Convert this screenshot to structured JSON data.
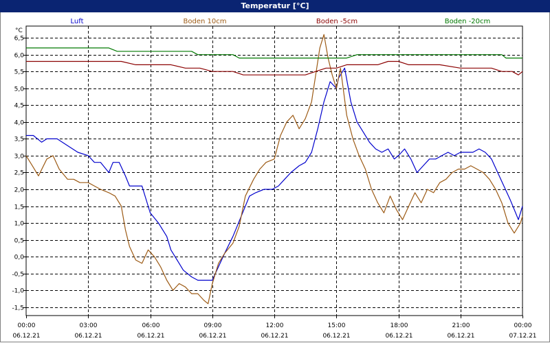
{
  "window": {
    "title": "Temperatur [°C]"
  },
  "chart_data": {
    "type": "line",
    "title": "Temperatur [°C]",
    "ylabel": "°C",
    "xlabel": "",
    "ylim": [
      -1.75,
      6.85
    ],
    "xlim": [
      0,
      24
    ],
    "grid": true,
    "legend_position": "top",
    "y_ticks": [
      -1.5,
      -1.0,
      -0.5,
      0.0,
      0.5,
      1.0,
      1.5,
      2.0,
      2.5,
      3.0,
      3.5,
      4.0,
      4.5,
      5.0,
      5.5,
      6.0,
      6.5
    ],
    "y_tick_labels": [
      "-1,5",
      "-1,0",
      "-0,5",
      "0,0",
      "0,5",
      "1,0",
      "1,5",
      "2,0",
      "2,5",
      "3,0",
      "3,5",
      "4,0",
      "4,5",
      "5,0",
      "5,5",
      "6,0",
      "6,5"
    ],
    "x_ticks": [
      0,
      3,
      6,
      9,
      12,
      15,
      18,
      21,
      24
    ],
    "x_tick_times": [
      "00:00",
      "03:00",
      "06:00",
      "09:00",
      "12:00",
      "15:00",
      "18:00",
      "21:00",
      "00:00"
    ],
    "x_tick_dates": [
      "06.12.21",
      "06.12.21",
      "06.12.21",
      "06.12.21",
      "06.12.21",
      "06.12.21",
      "06.12.21",
      "06.12.21",
      "07.12.21"
    ],
    "series": [
      {
        "name": "Luft",
        "color": "#0000cc",
        "x": [
          0,
          0.35,
          0.75,
          1.0,
          1.5,
          2.0,
          2.5,
          3.0,
          3.3,
          3.6,
          4.0,
          4.2,
          4.5,
          4.8,
          5.0,
          5.3,
          5.6,
          5.9,
          6.0,
          6.4,
          6.8,
          7.0,
          7.3,
          7.6,
          8.0,
          8.3,
          8.6,
          9.0,
          9.3,
          9.6,
          10.0,
          10.4,
          10.8,
          11.1,
          11.5,
          11.9,
          12.2,
          12.5,
          12.8,
          13.2,
          13.5,
          13.8,
          14.1,
          14.4,
          14.7,
          15.0,
          15.1,
          15.4,
          15.7,
          16.0,
          16.3,
          16.6,
          16.9,
          17.2,
          17.5,
          17.8,
          18.0,
          18.3,
          18.6,
          18.9,
          19.2,
          19.5,
          19.8,
          20.1,
          20.4,
          20.7,
          21.0,
          21.3,
          21.6,
          21.9,
          22.2,
          22.5,
          22.8,
          23.1,
          23.4,
          23.6,
          23.8,
          24.0
        ],
        "y": [
          3.6,
          3.6,
          3.4,
          3.5,
          3.5,
          3.3,
          3.1,
          3.0,
          2.8,
          2.8,
          2.5,
          2.8,
          2.8,
          2.4,
          2.1,
          2.1,
          2.1,
          1.5,
          1.3,
          1.0,
          0.6,
          0.2,
          -0.1,
          -0.4,
          -0.6,
          -0.7,
          -0.7,
          -0.7,
          -0.3,
          0.1,
          0.6,
          1.2,
          1.8,
          1.9,
          2.0,
          2.0,
          2.1,
          2.3,
          2.5,
          2.7,
          2.8,
          3.1,
          3.8,
          4.6,
          5.2,
          5.0,
          5.3,
          5.6,
          4.6,
          4.0,
          3.7,
          3.4,
          3.2,
          3.1,
          3.2,
          2.9,
          3.0,
          3.2,
          2.9,
          2.5,
          2.7,
          2.9,
          2.9,
          3.0,
          3.1,
          3.0,
          3.1,
          3.1,
          3.1,
          3.2,
          3.1,
          2.9,
          2.5,
          2.1,
          1.7,
          1.4,
          1.1,
          1.5
        ]
      },
      {
        "name": "Boden 10cm",
        "color": "#9c5a14",
        "x": [
          0,
          0.3,
          0.6,
          1.0,
          1.3,
          1.6,
          2.0,
          2.3,
          2.6,
          3.0,
          3.3,
          3.6,
          4.0,
          4.3,
          4.6,
          4.8,
          5.0,
          5.3,
          5.6,
          5.9,
          6.2,
          6.5,
          6.8,
          7.1,
          7.4,
          7.7,
          8.0,
          8.3,
          8.6,
          8.8,
          9.0,
          9.3,
          9.6,
          10.0,
          10.3,
          10.6,
          11.0,
          11.3,
          11.6,
          12.0,
          12.3,
          12.6,
          12.9,
          13.2,
          13.5,
          13.8,
          14.0,
          14.2,
          14.4,
          14.6,
          14.8,
          15.0,
          15.2,
          15.5,
          15.8,
          16.1,
          16.4,
          16.7,
          17.0,
          17.3,
          17.6,
          17.9,
          18.2,
          18.5,
          18.8,
          19.1,
          19.4,
          19.7,
          20.0,
          20.3,
          20.6,
          20.9,
          21.2,
          21.5,
          21.8,
          22.1,
          22.4,
          22.7,
          23.0,
          23.3,
          23.6,
          23.9,
          24.0
        ],
        "y": [
          3.0,
          2.7,
          2.4,
          2.9,
          3.0,
          2.6,
          2.3,
          2.3,
          2.2,
          2.2,
          2.1,
          2.0,
          1.9,
          1.8,
          1.5,
          0.8,
          0.3,
          -0.1,
          -0.2,
          0.2,
          0.0,
          -0.3,
          -0.7,
          -1.0,
          -0.8,
          -0.9,
          -1.1,
          -1.1,
          -1.3,
          -1.4,
          -0.8,
          -0.2,
          0.1,
          0.4,
          0.9,
          1.8,
          2.3,
          2.6,
          2.8,
          2.9,
          3.6,
          4.0,
          4.2,
          3.8,
          4.1,
          4.6,
          5.4,
          6.2,
          6.6,
          5.9,
          5.4,
          5.0,
          5.6,
          4.2,
          3.5,
          3.0,
          2.6,
          2.0,
          1.6,
          1.3,
          1.8,
          1.4,
          1.1,
          1.5,
          1.9,
          1.6,
          2.0,
          1.9,
          2.2,
          2.3,
          2.5,
          2.6,
          2.6,
          2.7,
          2.6,
          2.5,
          2.3,
          2.0,
          1.6,
          1.0,
          0.7,
          1.0,
          1.2
        ]
      },
      {
        "name": "Boden -5cm",
        "color": "#8b0000",
        "x": [
          0,
          1.0,
          2.0,
          3.0,
          4.0,
          4.6,
          5.3,
          6.0,
          7.0,
          7.7,
          8.0,
          8.4,
          9.0,
          9.5,
          10.0,
          10.5,
          11.0,
          12.0,
          12.5,
          13.0,
          13.5,
          14.0,
          14.5,
          15.0,
          15.5,
          16.0,
          16.5,
          17.0,
          17.5,
          18.0,
          18.5,
          19.0,
          20.0,
          21.0,
          22.0,
          22.5,
          23.0,
          23.5,
          23.8,
          24.0
        ],
        "y": [
          5.8,
          5.8,
          5.8,
          5.8,
          5.8,
          5.8,
          5.7,
          5.7,
          5.7,
          5.6,
          5.6,
          5.6,
          5.5,
          5.5,
          5.5,
          5.4,
          5.4,
          5.4,
          5.4,
          5.4,
          5.4,
          5.5,
          5.6,
          5.6,
          5.7,
          5.7,
          5.7,
          5.7,
          5.8,
          5.8,
          5.7,
          5.7,
          5.7,
          5.6,
          5.6,
          5.6,
          5.5,
          5.5,
          5.4,
          5.5
        ]
      },
      {
        "name": "Boden -20cm",
        "color": "#007800",
        "x": [
          0,
          2.0,
          4.0,
          4.4,
          5.0,
          6.0,
          7.0,
          8.0,
          8.3,
          9.0,
          10.0,
          10.3,
          11.0,
          12.0,
          13.0,
          14.0,
          15.0,
          15.5,
          16.0,
          17.0,
          18.0,
          19.0,
          20.0,
          21.0,
          22.0,
          23.0,
          23.2,
          23.6,
          24.0
        ],
        "y": [
          6.2,
          6.2,
          6.2,
          6.1,
          6.1,
          6.1,
          6.1,
          6.1,
          6.0,
          6.0,
          6.0,
          5.9,
          5.9,
          5.9,
          5.9,
          5.9,
          5.9,
          5.9,
          6.0,
          6.0,
          6.0,
          6.0,
          6.0,
          6.0,
          6.0,
          6.0,
          5.9,
          5.9,
          5.9
        ]
      }
    ]
  }
}
